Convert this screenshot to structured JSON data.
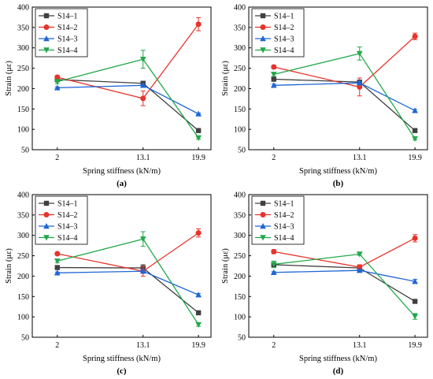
{
  "chart_data": [
    {
      "type": "line",
      "panel_label": "(a)",
      "xlabel": "Spring stiffness (kN/m)",
      "ylabel": "Strain (με)",
      "categories": [
        "2",
        "13.1",
        "19.9"
      ],
      "ylim": [
        50,
        400
      ],
      "yticks": [
        50,
        100,
        150,
        200,
        250,
        300,
        350,
        400
      ],
      "legend_position": "top-left",
      "series": [
        {
          "name": "S14–1",
          "color": "#404040",
          "marker": "square",
          "values": [
            222,
            213,
            97
          ],
          "errors": [
            3,
            4,
            2
          ]
        },
        {
          "name": "S14–2",
          "color": "#e8332b",
          "marker": "circle",
          "values": [
            228,
            176,
            358
          ],
          "errors": [
            4,
            18,
            16
          ]
        },
        {
          "name": "S14–3",
          "color": "#1f66d6",
          "marker": "triangle-up",
          "values": [
            202,
            208,
            138
          ],
          "errors": [
            2,
            3,
            2
          ]
        },
        {
          "name": "S14–4",
          "color": "#22a84a",
          "marker": "triangle-down",
          "values": [
            217,
            272,
            79
          ],
          "errors": [
            5,
            22,
            3
          ]
        }
      ]
    },
    {
      "type": "line",
      "panel_label": "(b)",
      "xlabel": "Spring stiffness (kN/m)",
      "ylabel": "Strain (με)",
      "categories": [
        "2",
        "13.1",
        "19.9"
      ],
      "ylim": [
        50,
        400
      ],
      "yticks": [
        50,
        100,
        150,
        200,
        250,
        300,
        350,
        400
      ],
      "legend_position": "top-left",
      "series": [
        {
          "name": "S14–1",
          "color": "#404040",
          "marker": "square",
          "values": [
            223,
            216,
            97
          ],
          "errors": [
            3,
            5,
            2
          ]
        },
        {
          "name": "S14–2",
          "color": "#e8332b",
          "marker": "circle",
          "values": [
            253,
            204,
            328
          ],
          "errors": [
            4,
            22,
            8
          ]
        },
        {
          "name": "S14–3",
          "color": "#1f66d6",
          "marker": "triangle-up",
          "values": [
            208,
            214,
            146
          ],
          "errors": [
            3,
            4,
            3
          ]
        },
        {
          "name": "S14–4",
          "color": "#22a84a",
          "marker": "triangle-down",
          "values": [
            235,
            286,
            77
          ],
          "errors": [
            5,
            16,
            3
          ]
        }
      ]
    },
    {
      "type": "line",
      "panel_label": "(c)",
      "xlabel": "Spring stiffness (kN/m)",
      "ylabel": "Strain (με)",
      "categories": [
        "2",
        "13.1",
        "19.9"
      ],
      "ylim": [
        50,
        400
      ],
      "yticks": [
        50,
        100,
        150,
        200,
        250,
        300,
        350,
        400
      ],
      "legend_position": "top-left",
      "series": [
        {
          "name": "S14–1",
          "color": "#404040",
          "marker": "square",
          "values": [
            221,
            220,
            110
          ],
          "errors": [
            3,
            8,
            2
          ]
        },
        {
          "name": "S14–2",
          "color": "#e8332b",
          "marker": "circle",
          "values": [
            255,
            212,
            306
          ],
          "errors": [
            3,
            12,
            10
          ]
        },
        {
          "name": "S14–3",
          "color": "#1f66d6",
          "marker": "triangle-up",
          "values": [
            208,
            212,
            154
          ],
          "errors": [
            2,
            4,
            3
          ]
        },
        {
          "name": "S14–4",
          "color": "#22a84a",
          "marker": "triangle-down",
          "values": [
            237,
            291,
            81
          ],
          "errors": [
            4,
            18,
            4
          ]
        }
      ]
    },
    {
      "type": "line",
      "panel_label": "(d)",
      "xlabel": "Spring stiffness (kN/m)",
      "ylabel": "Strain (με)",
      "categories": [
        "2",
        "13.1",
        "19.9"
      ],
      "ylim": [
        50,
        400
      ],
      "yticks": [
        50,
        100,
        150,
        200,
        250,
        300,
        350,
        400
      ],
      "legend_position": "top-left",
      "series": [
        {
          "name": "S14–1",
          "color": "#404040",
          "marker": "square",
          "values": [
            228,
            220,
            138
          ],
          "errors": [
            3,
            4,
            2
          ]
        },
        {
          "name": "S14–2",
          "color": "#e8332b",
          "marker": "circle",
          "values": [
            260,
            222,
            293
          ],
          "errors": [
            5,
            6,
            9
          ]
        },
        {
          "name": "S14–3",
          "color": "#1f66d6",
          "marker": "triangle-up",
          "values": [
            209,
            214,
            187
          ],
          "errors": [
            2,
            3,
            5
          ]
        },
        {
          "name": "S14–4",
          "color": "#22a84a",
          "marker": "triangle-down",
          "values": [
            229,
            254,
            101
          ],
          "errors": [
            8,
            3,
            7
          ]
        }
      ]
    }
  ]
}
